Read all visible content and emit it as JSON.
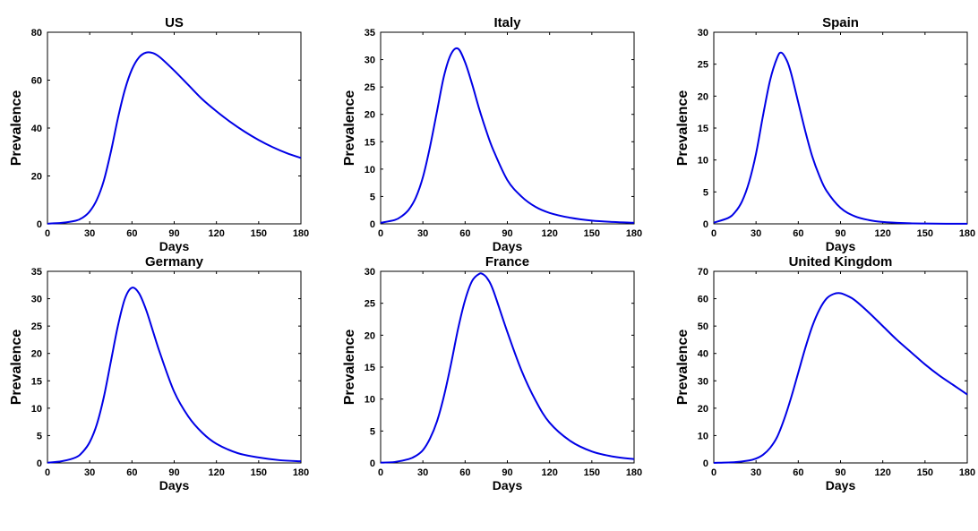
{
  "chart_data": [
    {
      "type": "line",
      "title": "US",
      "xlabel": "Days",
      "ylabel": "Prevalence",
      "xlim": [
        0,
        180
      ],
      "ylim": [
        0,
        80
      ],
      "xticks": [
        0,
        30,
        60,
        90,
        120,
        150,
        180
      ],
      "yticks": [
        0,
        20,
        40,
        60,
        80
      ],
      "color": "#0000e6",
      "series": [
        {
          "x": [
            0,
            10,
            20,
            25,
            30,
            35,
            40,
            45,
            50,
            55,
            60,
            65,
            70,
            75,
            80,
            90,
            100,
            110,
            120,
            130,
            140,
            150,
            160,
            170,
            180
          ],
          "y": [
            0.1,
            0.4,
            1.3,
            2.6,
            5.2,
            10,
            18,
            30,
            44,
            56,
            64.5,
            69.5,
            71.5,
            71.3,
            69.5,
            64,
            58,
            52,
            47,
            42.5,
            38.5,
            35,
            32,
            29.5,
            27.5
          ]
        }
      ]
    },
    {
      "type": "line",
      "title": "Italy",
      "xlabel": "Days",
      "ylabel": "Prevalence",
      "xlim": [
        0,
        180
      ],
      "ylim": [
        0,
        35
      ],
      "xticks": [
        0,
        30,
        60,
        90,
        120,
        150,
        180
      ],
      "yticks": [
        0,
        5,
        10,
        15,
        20,
        25,
        30,
        35
      ],
      "color": "#0000e6",
      "series": [
        {
          "x": [
            0,
            10,
            15,
            20,
            25,
            30,
            35,
            40,
            45,
            50,
            55,
            60,
            65,
            70,
            75,
            80,
            90,
            100,
            110,
            120,
            135,
            150,
            165,
            180
          ],
          "y": [
            0.2,
            0.7,
            1.4,
            2.6,
            4.8,
            8.5,
            14,
            20.5,
            27,
            31,
            32,
            29.5,
            25.5,
            21,
            17,
            13.5,
            8,
            5,
            3.1,
            2,
            1.1,
            0.6,
            0.35,
            0.2
          ]
        }
      ]
    },
    {
      "type": "line",
      "title": "Spain",
      "xlabel": "Days",
      "ylabel": "Prevalence",
      "xlim": [
        0,
        180
      ],
      "ylim": [
        0,
        30
      ],
      "xticks": [
        0,
        30,
        60,
        90,
        120,
        150,
        180
      ],
      "yticks": [
        0,
        5,
        10,
        15,
        20,
        25,
        30
      ],
      "color": "#0000e6",
      "series": [
        {
          "x": [
            0,
            10,
            15,
            20,
            25,
            30,
            35,
            40,
            45,
            48,
            52,
            55,
            60,
            65,
            70,
            75,
            80,
            90,
            100,
            110,
            120,
            135,
            150,
            165,
            180
          ],
          "y": [
            0.2,
            0.9,
            1.8,
            3.5,
            6.5,
            11,
            17,
            22.5,
            26,
            26.8,
            25.5,
            23.5,
            19,
            14.5,
            10.5,
            7.5,
            5.2,
            2.5,
            1.2,
            0.6,
            0.3,
            0.12,
            0.05,
            0.02,
            0.01
          ]
        }
      ]
    },
    {
      "type": "line",
      "title": "Germany",
      "xlabel": "Days",
      "ylabel": "Prevalence",
      "xlim": [
        0,
        180
      ],
      "ylim": [
        0,
        35
      ],
      "xticks": [
        0,
        30,
        60,
        90,
        120,
        150,
        180
      ],
      "yticks": [
        0,
        5,
        10,
        15,
        20,
        25,
        30,
        35
      ],
      "color": "#0000e6",
      "series": [
        {
          "x": [
            0,
            10,
            20,
            25,
            30,
            35,
            40,
            45,
            50,
            55,
            60,
            65,
            70,
            75,
            80,
            90,
            100,
            110,
            120,
            135,
            150,
            165,
            180
          ],
          "y": [
            0.05,
            0.3,
            1,
            2,
            3.8,
            7,
            12,
            18.5,
            25,
            30,
            32,
            31,
            28,
            24,
            20,
            13,
            8.5,
            5.5,
            3.5,
            1.8,
            1,
            0.5,
            0.3
          ]
        }
      ]
    },
    {
      "type": "line",
      "title": "France",
      "xlabel": "Days",
      "ylabel": "Prevalence",
      "xlim": [
        0,
        180
      ],
      "ylim": [
        0,
        30
      ],
      "xticks": [
        0,
        30,
        60,
        90,
        120,
        150,
        180
      ],
      "yticks": [
        0,
        5,
        10,
        15,
        20,
        25,
        30
      ],
      "color": "#0000e6",
      "series": [
        {
          "x": [
            0,
            10,
            20,
            25,
            30,
            35,
            40,
            45,
            50,
            55,
            60,
            65,
            70,
            73,
            76,
            80,
            90,
            100,
            110,
            120,
            135,
            150,
            165,
            180
          ],
          "y": [
            0.05,
            0.15,
            0.6,
            1.1,
            2,
            3.8,
            6.5,
            10.5,
            15.5,
            21,
            25.5,
            28.5,
            29.6,
            29.5,
            28.8,
            27,
            20.5,
            14.5,
            9.8,
            6.3,
            3.4,
            1.8,
            1,
            0.6
          ]
        }
      ]
    },
    {
      "type": "line",
      "title": "United Kingdom",
      "xlabel": "Days",
      "ylabel": "Prevalence",
      "xlim": [
        0,
        180
      ],
      "ylim": [
        0,
        70
      ],
      "xticks": [
        0,
        30,
        60,
        90,
        120,
        150,
        180
      ],
      "yticks": [
        0,
        10,
        20,
        30,
        40,
        50,
        60,
        70
      ],
      "color": "#0000e6",
      "series": [
        {
          "x": [
            0,
            15,
            25,
            30,
            35,
            40,
            45,
            50,
            55,
            60,
            65,
            70,
            75,
            80,
            85,
            90,
            95,
            100,
            110,
            120,
            130,
            140,
            150,
            160,
            170,
            180
          ],
          "y": [
            0.05,
            0.3,
            0.9,
            1.6,
            3,
            5.5,
            9.5,
            16,
            24,
            33,
            42,
            50,
            56,
            60,
            61.7,
            62,
            61,
            59.5,
            55,
            50,
            45,
            40.5,
            36,
            32,
            28.5,
            25
          ]
        }
      ]
    }
  ]
}
